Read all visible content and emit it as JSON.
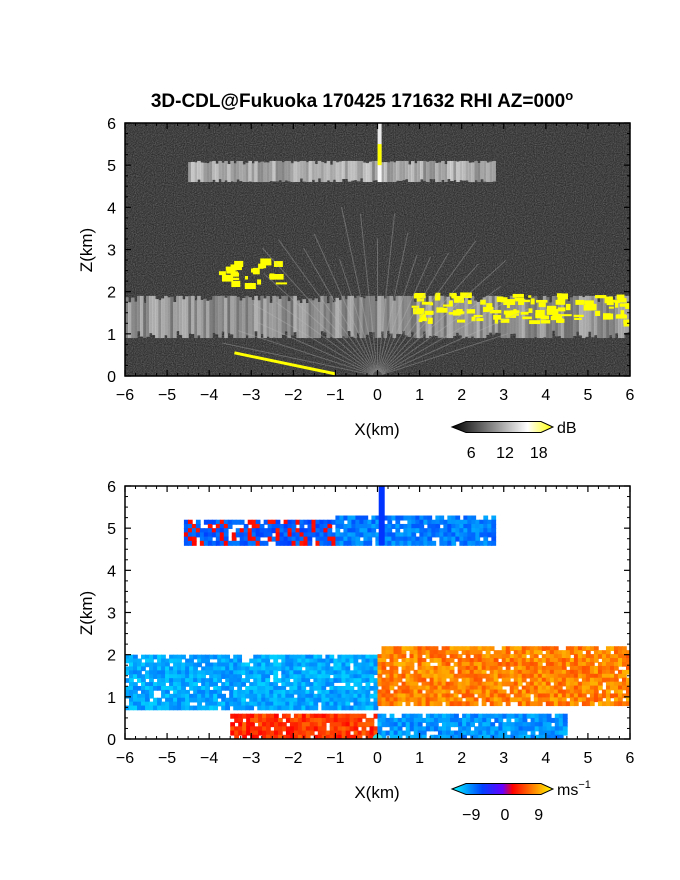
{
  "chart_data": [
    {
      "type": "heatmap",
      "title": "3D-CDL@Fukuoka 170425 171632 RHI AZ=000",
      "title_superscript": "o",
      "xlabel": "X(km)",
      "ylabel": "Z(km)",
      "xlim": [
        -6,
        6
      ],
      "ylim": [
        0,
        6
      ],
      "x_ticks": [
        -6,
        -5,
        -4,
        -3,
        -2,
        -1,
        0,
        1,
        2,
        3,
        4,
        5,
        6
      ],
      "y_ticks": [
        0,
        1,
        2,
        3,
        4,
        5,
        6
      ],
      "colorbar": {
        "unit": "dB",
        "ticks": [
          6,
          12,
          18
        ],
        "colors": [
          "#000000",
          "#ffffff",
          "#ffff00"
        ]
      },
      "features": [
        {
          "kind": "layer",
          "x_range": [
            -4.5,
            2.8
          ],
          "z_range": [
            4.6,
            5.1
          ],
          "level_db": 12
        },
        {
          "kind": "layer",
          "x_range": [
            -6,
            6
          ],
          "z_range": [
            0.9,
            1.9
          ],
          "level_db": 10
        },
        {
          "kind": "patch",
          "x_range": [
            -3.9,
            -2.4
          ],
          "z_range": [
            2.2,
            2.8
          ],
          "level_db": 18
        },
        {
          "kind": "patch",
          "x_range": [
            0.8,
            6
          ],
          "z_range": [
            1.3,
            2.0
          ],
          "level_db": 18
        }
      ]
    },
    {
      "type": "heatmap",
      "xlabel": "X(km)",
      "ylabel": "Z(km)",
      "xlim": [
        -6,
        6
      ],
      "ylim": [
        0,
        6
      ],
      "x_ticks": [
        -6,
        -5,
        -4,
        -3,
        -2,
        -1,
        0,
        1,
        2,
        3,
        4,
        5,
        6
      ],
      "y_ticks": [
        0,
        1,
        2,
        3,
        4,
        5,
        6
      ],
      "colorbar": {
        "unit": "ms",
        "unit_superscript": "−1",
        "ticks": [
          -9,
          0,
          9
        ],
        "tick_labels": [
          "−9",
          "0",
          "9"
        ],
        "colors": [
          "#00ffff",
          "#0033ff",
          "#ff0000",
          "#ffff00"
        ]
      },
      "features": [
        {
          "kind": "layer",
          "x_range": [
            -4.6,
            -1.0
          ],
          "z_range": [
            4.6,
            5.2
          ],
          "velocity_ms": -1
        },
        {
          "kind": "layer",
          "x_range": [
            -1.0,
            2.8
          ],
          "z_range": [
            4.6,
            5.3
          ],
          "velocity_ms": -3
        },
        {
          "kind": "layer",
          "x_range": [
            -6,
            0
          ],
          "z_range": [
            0.7,
            2.0
          ],
          "velocity_ms": -5
        },
        {
          "kind": "layer",
          "x_range": [
            0,
            6
          ],
          "z_range": [
            0.8,
            2.2
          ],
          "velocity_ms": 5
        },
        {
          "kind": "layer",
          "x_range": [
            -3.5,
            0
          ],
          "z_range": [
            0,
            0.6
          ],
          "velocity_ms": 2
        },
        {
          "kind": "layer",
          "x_range": [
            0,
            4.5
          ],
          "z_range": [
            0,
            0.6
          ],
          "velocity_ms": -4
        }
      ]
    }
  ]
}
